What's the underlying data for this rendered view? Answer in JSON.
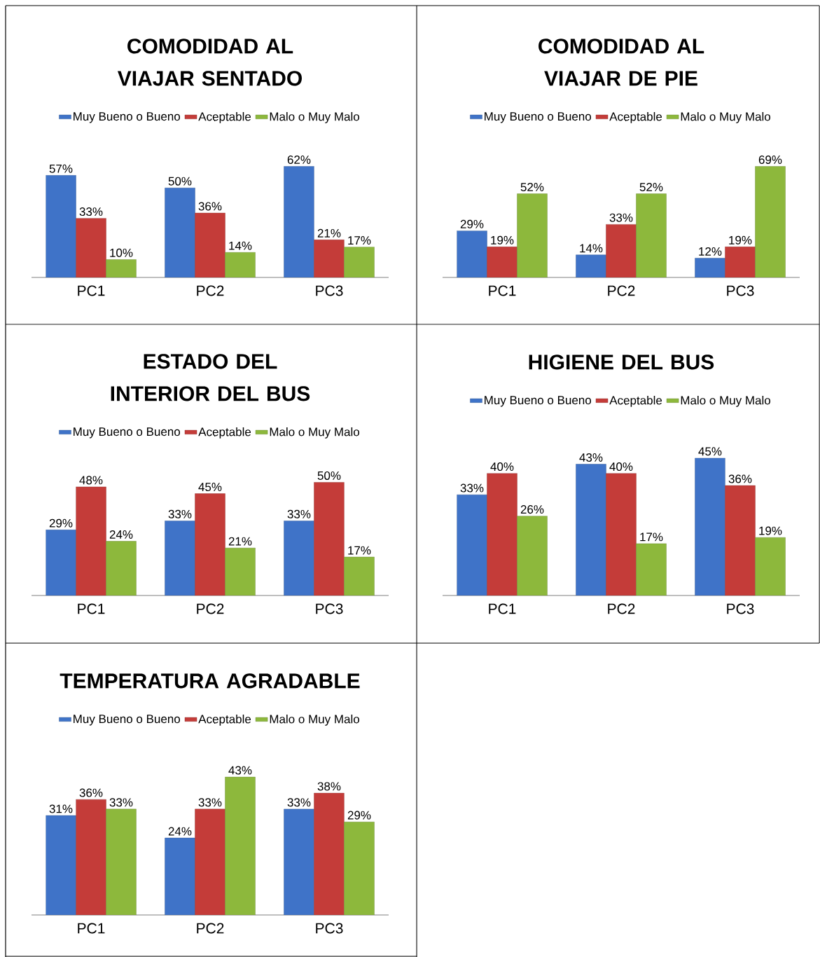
{
  "chart_data": [
    {
      "type": "bar",
      "title": "COMODIDAD AL VIAJAR SENTADO",
      "categories": [
        "PC1",
        "PC2",
        "PC3"
      ],
      "legend": "top",
      "series": [
        {
          "name": "Muy Bueno o Bueno",
          "color": "#3f73c8",
          "values": [
            57,
            50,
            62
          ],
          "value_labels": [
            "57%",
            "50%",
            "62%"
          ]
        },
        {
          "name": "Aceptable",
          "color": "#c43c39",
          "values": [
            33,
            36,
            21
          ],
          "value_labels": [
            "33%",
            "36%",
            "21%"
          ]
        },
        {
          "name": "Malo o Muy Malo",
          "color": "#8db83c",
          "values": [
            10,
            14,
            17
          ],
          "value_labels": [
            "10%",
            "14%",
            "17%"
          ]
        }
      ]
    },
    {
      "type": "bar",
      "title": "COMODIDAD AL VIAJAR DE PIE",
      "categories": [
        "PC1",
        "PC2",
        "PC3"
      ],
      "legend": "top",
      "series": [
        {
          "name": "Muy Bueno o Bueno",
          "color": "#3f73c8",
          "values": [
            29,
            14,
            12
          ],
          "value_labels": [
            "29%",
            "14%",
            "12%"
          ]
        },
        {
          "name": "Aceptable",
          "color": "#c43c39",
          "values": [
            19,
            33,
            19
          ],
          "value_labels": [
            "19%",
            "33%",
            "19%"
          ]
        },
        {
          "name": "Malo o Muy Malo",
          "color": "#8db83c",
          "values": [
            52,
            52,
            69
          ],
          "value_labels": [
            "52%",
            "52%",
            "69%"
          ]
        }
      ]
    },
    {
      "type": "bar",
      "title": "ESTADO DEL INTERIOR DEL BUS",
      "categories": [
        "PC1",
        "PC2",
        "PC3"
      ],
      "legend": "top",
      "series": [
        {
          "name": "Muy Bueno o Bueno",
          "color": "#3f73c8",
          "values": [
            29,
            33,
            33
          ],
          "value_labels": [
            "29%",
            "33%",
            "33%"
          ]
        },
        {
          "name": "Aceptable",
          "color": "#c43c39",
          "values": [
            48,
            45,
            50
          ],
          "value_labels": [
            "48%",
            "45%",
            "50%"
          ]
        },
        {
          "name": "Malo o Muy Malo",
          "color": "#8db83c",
          "values": [
            24,
            21,
            17
          ],
          "value_labels": [
            "24%",
            "21%",
            "17%"
          ]
        }
      ]
    },
    {
      "type": "bar",
      "title": "HIGIENE DEL BUS",
      "categories": [
        "PC1",
        "PC2",
        "PC3"
      ],
      "legend": "top",
      "series": [
        {
          "name": "Muy Bueno o Bueno",
          "color": "#3f73c8",
          "values": [
            33,
            43,
            45
          ],
          "value_labels": [
            "33%",
            "43%",
            "45%"
          ]
        },
        {
          "name": "Aceptable",
          "color": "#c43c39",
          "values": [
            40,
            40,
            36
          ],
          "value_labels": [
            "40%",
            "40%",
            "36%"
          ]
        },
        {
          "name": "Malo o Muy Malo",
          "color": "#8db83c",
          "values": [
            26,
            17,
            19
          ],
          "value_labels": [
            "26%",
            "17%",
            "19%"
          ]
        }
      ]
    },
    {
      "type": "bar",
      "title": "TEMPERATURA AGRADABLE",
      "categories": [
        "PC1",
        "PC2",
        "PC3"
      ],
      "legend": "top",
      "series": [
        {
          "name": "Muy Bueno o Bueno",
          "color": "#3f73c8",
          "values": [
            31,
            24,
            33
          ],
          "value_labels": [
            "31%",
            "24%",
            "33%"
          ]
        },
        {
          "name": "Aceptable",
          "color": "#c43c39",
          "values": [
            36,
            33,
            38
          ],
          "value_labels": [
            "36%",
            "33%",
            "38%"
          ]
        },
        {
          "name": "Malo o Muy Malo",
          "color": "#8db83c",
          "values": [
            33,
            43,
            29
          ],
          "value_labels": [
            "33%",
            "43%",
            "29%"
          ]
        }
      ]
    }
  ]
}
